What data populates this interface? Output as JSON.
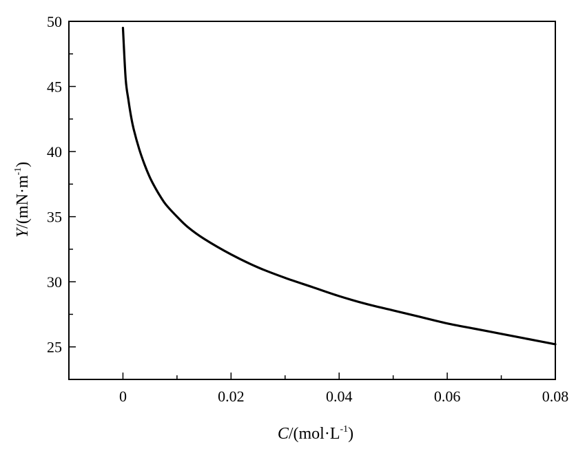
{
  "chart_data": {
    "type": "line",
    "title": "",
    "xlabel": {
      "italic": "C",
      "rest": "/(mol·L",
      "sup": "-1",
      "close": ")"
    },
    "ylabel": {
      "italic": "Y",
      "rest": "/(mN·m",
      "sup": "-1",
      "close": ")"
    },
    "xlim": [
      -0.01,
      0.08
    ],
    "ylim": [
      22.5,
      50
    ],
    "x_ticks": [
      0,
      0.02,
      0.04,
      0.06,
      0.08
    ],
    "x_tick_labels": [
      "0",
      "0.02",
      "0.04",
      "0.06",
      "0.08"
    ],
    "x_minor_ticks": [
      -0.01,
      0.01,
      0.03,
      0.05,
      0.07
    ],
    "y_ticks": [
      25,
      30,
      35,
      40,
      45,
      50
    ],
    "y_tick_labels": [
      "25",
      "30",
      "35",
      "40",
      "45",
      "50"
    ],
    "y_minor_ticks": [
      22.5,
      27.5,
      32.5,
      37.5,
      42.5,
      47.5
    ],
    "grid": false,
    "legend": "none",
    "series": [
      {
        "color": "#000000",
        "x": [
          0,
          0.0005,
          0.001,
          0.0015,
          0.002,
          0.003,
          0.004,
          0.005,
          0.006,
          0.007,
          0.008,
          0.01,
          0.012,
          0.015,
          0.02,
          0.025,
          0.03,
          0.035,
          0.04,
          0.045,
          0.05,
          0.055,
          0.06,
          0.065,
          0.07,
          0.075,
          0.08
        ],
        "y": [
          49.5,
          45.6,
          44.0,
          42.7,
          41.7,
          40.2,
          39.0,
          38.0,
          37.2,
          36.5,
          35.9,
          35.0,
          34.2,
          33.3,
          32.1,
          31.1,
          30.3,
          29.6,
          28.9,
          28.3,
          27.8,
          27.3,
          26.8,
          26.4,
          26.0,
          25.6,
          25.2
        ]
      }
    ]
  }
}
